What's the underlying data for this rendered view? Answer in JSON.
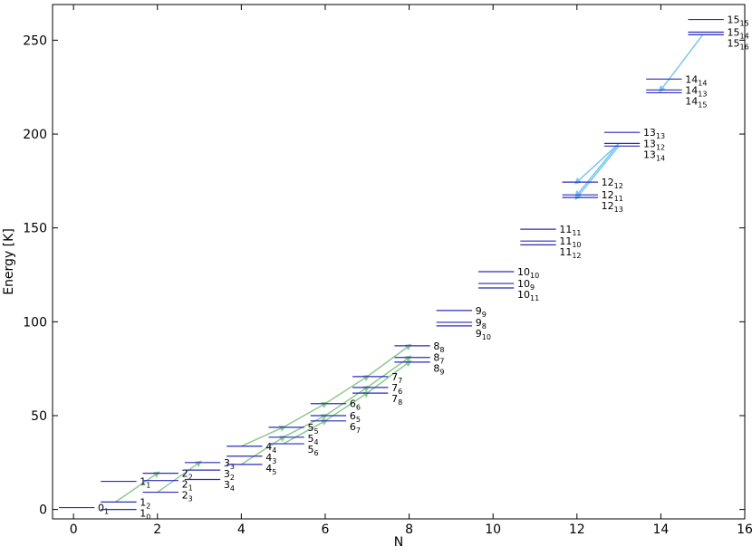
{
  "chart_data": {
    "type": "levels",
    "xlabel": "N",
    "ylabel": "Energy [K]",
    "xlim": [
      -0.5,
      16
    ],
    "xticks": [
      0,
      2,
      4,
      6,
      8,
      10,
      12,
      14,
      16
    ],
    "ylim": [
      -5,
      269
    ],
    "yticks": [
      0,
      50,
      100,
      150,
      200,
      250
    ],
    "color": "#2b2bbb",
    "levels": [
      {
        "x": 0,
        "k": 1,
        "y": 1
      },
      {
        "x": 1,
        "k": 1,
        "y": 15
      },
      {
        "x": 1,
        "k": 2,
        "y": 4
      },
      {
        "x": 1,
        "k": 0,
        "y": 0
      },
      {
        "x": 2,
        "k": 2,
        "y": 19.3
      },
      {
        "x": 2,
        "k": 1,
        "y": 15.4
      },
      {
        "x": 2,
        "k": 3,
        "y": 9.2
      },
      {
        "x": 3,
        "k": 3,
        "y": 25
      },
      {
        "x": 3,
        "k": 2,
        "y": 21
      },
      {
        "x": 3,
        "k": 4,
        "y": 16
      },
      {
        "x": 4,
        "k": 4,
        "y": 33.7
      },
      {
        "x": 4,
        "k": 3,
        "y": 28.4
      },
      {
        "x": 4,
        "k": 5,
        "y": 24
      },
      {
        "x": 5,
        "k": 5,
        "y": 43.8
      },
      {
        "x": 5,
        "k": 4,
        "y": 38.5
      },
      {
        "x": 5,
        "k": 6,
        "y": 35
      },
      {
        "x": 6,
        "k": 6,
        "y": 56.4
      },
      {
        "x": 6,
        "k": 5,
        "y": 50
      },
      {
        "x": 6,
        "k": 7,
        "y": 47.2
      },
      {
        "x": 7,
        "k": 7,
        "y": 70.8
      },
      {
        "x": 7,
        "k": 6,
        "y": 65
      },
      {
        "x": 7,
        "k": 8,
        "y": 62
      },
      {
        "x": 8,
        "k": 8,
        "y": 87.2
      },
      {
        "x": 8,
        "k": 7,
        "y": 81
      },
      {
        "x": 8,
        "k": 9,
        "y": 78.5
      },
      {
        "x": 9,
        "k": 9,
        "y": 106
      },
      {
        "x": 9,
        "k": 8,
        "y": 99.7
      },
      {
        "x": 9,
        "k": 10,
        "y": 97.8
      },
      {
        "x": 10,
        "k": 10,
        "y": 126.7
      },
      {
        "x": 10,
        "k": 9,
        "y": 120.4
      },
      {
        "x": 10,
        "k": 11,
        "y": 118
      },
      {
        "x": 11,
        "k": 11,
        "y": 149.3
      },
      {
        "x": 11,
        "k": 10,
        "y": 143
      },
      {
        "x": 11,
        "k": 12,
        "y": 141
      },
      {
        "x": 12,
        "k": 12,
        "y": 174.4
      },
      {
        "x": 12,
        "k": 11,
        "y": 167.6
      },
      {
        "x": 12,
        "k": 13,
        "y": 166.2
      },
      {
        "x": 13,
        "k": 13,
        "y": 200.9
      },
      {
        "x": 13,
        "k": 12,
        "y": 195
      },
      {
        "x": 13,
        "k": 14,
        "y": 193.6
      },
      {
        "x": 14,
        "k": 14,
        "y": 229.3
      },
      {
        "x": 14,
        "k": 13,
        "y": 223.5
      },
      {
        "x": 14,
        "k": 15,
        "y": 222
      },
      {
        "x": 15,
        "k": 15,
        "y": 261
      },
      {
        "x": 15,
        "k": 14,
        "y": 254.3
      },
      {
        "x": 15,
        "k": 16,
        "y": 252.9
      }
    ]
  }
}
